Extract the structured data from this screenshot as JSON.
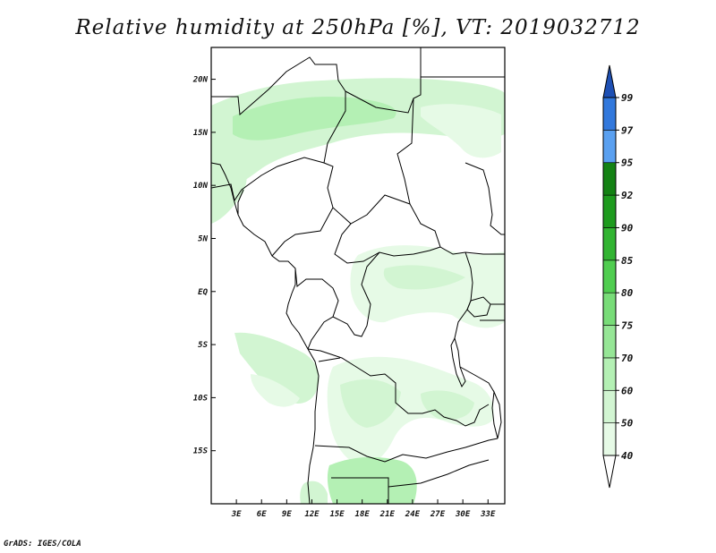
{
  "title": "Relative humidity at 250hPa [%], VT: 2019032712",
  "credit": "GrADS: IGES/COLA",
  "map": {
    "lon_range": [
      0,
      35
    ],
    "lat_range": [
      -20,
      23
    ],
    "lon_ticks": [
      3,
      6,
      9,
      12,
      15,
      18,
      21,
      24,
      27,
      30,
      33
    ],
    "lon_labels": [
      "3E",
      "6E",
      "9E",
      "12E",
      "15E",
      "18E",
      "21E",
      "24E",
      "27E",
      "30E",
      "33E"
    ],
    "lat_ticks": [
      20,
      15,
      10,
      5,
      0,
      -5,
      -10,
      -15
    ],
    "lat_labels": [
      "20N",
      "15N",
      "10N",
      "5N",
      "EQ",
      "5S",
      "10S",
      "15S"
    ]
  },
  "colorbar": {
    "levels": [
      "40",
      "50",
      "60",
      "70",
      "75",
      "80",
      "85",
      "90",
      "92",
      "95",
      "97",
      "99"
    ],
    "colors": [
      "#ffffff",
      "#e6fae6",
      "#d2f5d2",
      "#b4f0b4",
      "#96e696",
      "#78dc78",
      "#50cd50",
      "#32b432",
      "#1e9b1e",
      "#148214",
      "#5aa0f0",
      "#3278dc",
      "#1e50b4"
    ]
  }
}
